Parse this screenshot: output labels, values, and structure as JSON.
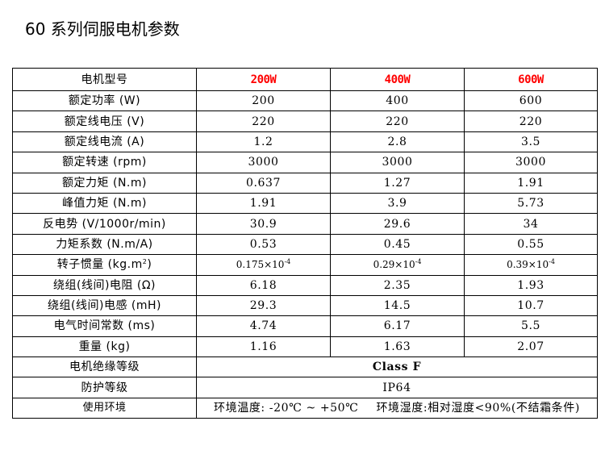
{
  "title": "60 系列伺服电机参数",
  "table": {
    "header": {
      "label": "电机型号",
      "models": [
        "200W",
        "400W",
        "600W"
      ]
    },
    "rows": [
      {
        "label": "额定功率 (W)",
        "values": [
          "200",
          "400",
          "600"
        ]
      },
      {
        "label": "额定线电压 (V)",
        "values": [
          "220",
          "220",
          "220"
        ]
      },
      {
        "label": "额定线电流 (A)",
        "values": [
          "1.2",
          "2.8",
          "3.5"
        ]
      },
      {
        "label": "额定转速 (rpm)",
        "values": [
          "3000",
          "3000",
          "3000"
        ]
      },
      {
        "label": "额定力矩 (N.m)",
        "values": [
          "0.637",
          "1.27",
          "1.91"
        ]
      },
      {
        "label": "峰值力矩 (N.m)",
        "values": [
          "1.91",
          "3.9",
          "5.73"
        ]
      },
      {
        "label": "反电势 (V/1000r/min)",
        "values": [
          "30.9",
          "29.6",
          "34"
        ]
      },
      {
        "label": "力矩系数 (N.m/A)",
        "values": [
          "0.53",
          "0.45",
          "0.55"
        ]
      }
    ],
    "inertia": {
      "label_prefix": "转子惯量 (kg.m",
      "label_sup": "2",
      "label_suffix": ")",
      "values": [
        {
          "base": "0.175×10",
          "exp": "-4"
        },
        {
          "base": "0.29×10",
          "exp": "-4"
        },
        {
          "base": "0.39×10",
          "exp": "-4"
        }
      ]
    },
    "rows2": [
      {
        "label": "绕组(线间)电阻 (Ω)",
        "values": [
          "6.18",
          "2.35",
          "1.93"
        ]
      },
      {
        "label": "绕组(线间)电感 (mH)",
        "values": [
          "29.3",
          "14.5",
          "10.7"
        ]
      },
      {
        "label": "电气时间常数 (ms)",
        "values": [
          "4.74",
          "6.17",
          "5.5"
        ]
      },
      {
        "label": "重量 (kg)",
        "values": [
          "1.16",
          "1.63",
          "2.07"
        ]
      }
    ],
    "insulation": {
      "label": "电机绝缘等级",
      "value": "Class F"
    },
    "protection": {
      "label": "防护等级",
      "value": "IP64"
    },
    "environment": {
      "label": "使用环境",
      "temperature": "环境温度: -20℃ ~ +50℃",
      "humidity": "环境湿度:相对湿度<90%(不结霜条件)"
    }
  }
}
